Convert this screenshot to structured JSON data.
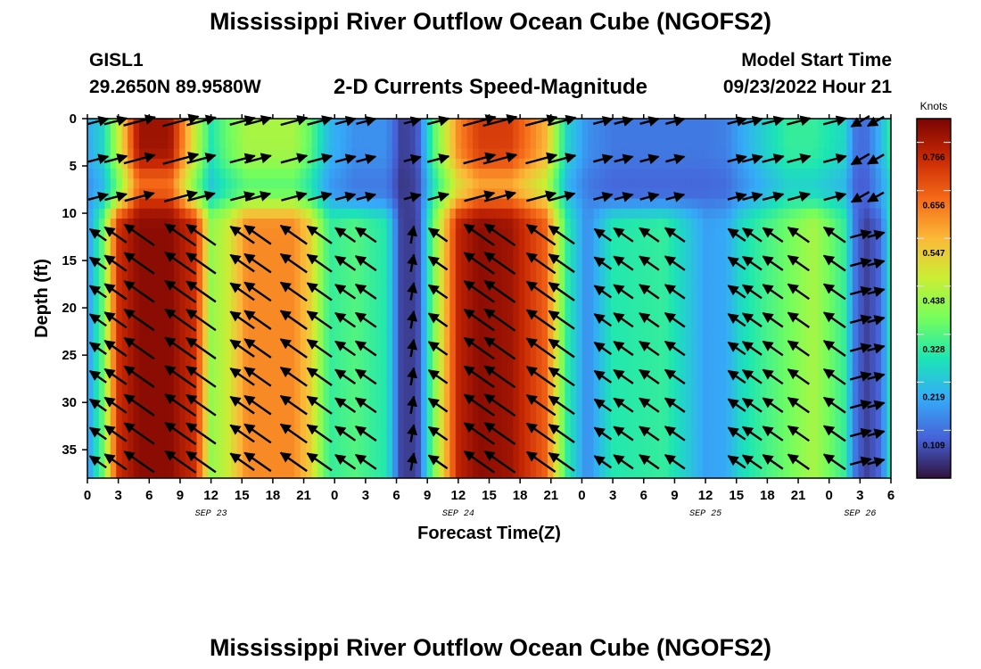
{
  "page": {
    "title": "Mississippi River Outflow Ocean Cube (NGOFS2)",
    "station": "GISL1",
    "coords": "29.2650N  89.9580W",
    "subtitle": "2-D Currents Speed-Magnitude",
    "model_start_label": "Model Start Time",
    "model_start_value": "09/23/2022 Hour 21",
    "footer_title": "Mississippi River Outflow Ocean Cube (NGOFS2)"
  },
  "chart_data": {
    "type": "heatmap",
    "xlabel": "Forecast Time(Z)",
    "ylabel": "Depth (ft)",
    "units_label": "Knots",
    "x_range_hours": [
      0,
      78
    ],
    "y_range_ft": [
      0,
      38
    ],
    "y_inverted": true,
    "x_tick_labels": [
      "0",
      "3",
      "6",
      "9",
      "12",
      "15",
      "18",
      "21",
      "0",
      "3",
      "6",
      "9",
      "12",
      "15",
      "18",
      "21",
      "0",
      "3",
      "6",
      "9",
      "12",
      "15",
      "18",
      "21",
      "0",
      "3",
      "6"
    ],
    "y_ticks": [
      0,
      5,
      10,
      15,
      20,
      25,
      30,
      35
    ],
    "y_tick_labels": [
      "0",
      "5",
      "10",
      "15",
      "20",
      "25",
      "30",
      "35"
    ],
    "day_labels": [
      {
        "text": "SEP 23",
        "hour": 12
      },
      {
        "text": "SEP 24",
        "hour": 36
      },
      {
        "text": "SEP 25",
        "hour": 60
      },
      {
        "text": "SEP 26",
        "hour": 75
      }
    ],
    "colorbar": {
      "min": 0,
      "max": 0.82,
      "tick_values": [
        0.109,
        0.219,
        0.328,
        0.438,
        0.547,
        0.656,
        0.766
      ],
      "tick_labels": [
        "0.109",
        "0.219",
        "0.328",
        "0.438",
        "0.547",
        "0.656",
        "0.766"
      ]
    },
    "colormap": [
      "#30123b",
      "#4662d8",
      "#35abf8",
      "#1be5b5",
      "#74fe5d",
      "#c9ef34",
      "#fbb938",
      "#f56918",
      "#c92903",
      "#7a0403"
    ],
    "speed_profile": {
      "hours": [
        0,
        1.5,
        3,
        5,
        8,
        10.5,
        12,
        13.5,
        15.5,
        20,
        21.5,
        23.5,
        26,
        29,
        30.5,
        32,
        33.5,
        36,
        38,
        41,
        44.5,
        46.5,
        48.5,
        51,
        56,
        58,
        60,
        62,
        63.5,
        66,
        68,
        70.5,
        73.5,
        74.5,
        75.5,
        77,
        78
      ],
      "surface_kn": [
        0.18,
        0.25,
        0.45,
        0.78,
        0.78,
        0.45,
        0.28,
        0.35,
        0.42,
        0.42,
        0.35,
        0.2,
        0.15,
        0.15,
        0.05,
        0.07,
        0.32,
        0.6,
        0.7,
        0.7,
        0.55,
        0.25,
        0.15,
        0.12,
        0.12,
        0.12,
        0.12,
        0.13,
        0.18,
        0.25,
        0.3,
        0.3,
        0.25,
        0.12,
        0.1,
        0.2,
        0.3
      ],
      "deep_kn": [
        0.15,
        0.35,
        0.72,
        0.8,
        0.8,
        0.72,
        0.4,
        0.45,
        0.6,
        0.6,
        0.52,
        0.3,
        0.33,
        0.28,
        0.05,
        0.05,
        0.35,
        0.74,
        0.8,
        0.78,
        0.65,
        0.3,
        0.14,
        0.28,
        0.3,
        0.24,
        0.17,
        0.18,
        0.26,
        0.32,
        0.36,
        0.42,
        0.3,
        0.12,
        0.05,
        0.1,
        0.28
      ]
    },
    "vectors": {
      "hours": [
        0,
        1.7,
        4,
        8,
        10,
        14,
        15.5,
        19,
        21.5,
        24,
        26,
        30.5,
        33,
        37,
        39,
        43,
        45,
        49,
        51,
        53.5,
        56,
        62,
        63.5,
        65.5,
        68,
        71.5,
        74,
        75.5
      ],
      "depths": [
        0,
        4,
        8,
        12,
        15,
        18,
        21,
        24,
        27,
        30,
        33,
        36
      ],
      "surface_angle_deg": 15,
      "deep_ebb_angle_deg": 145,
      "deep_flood_angle_deg": 325
    }
  }
}
